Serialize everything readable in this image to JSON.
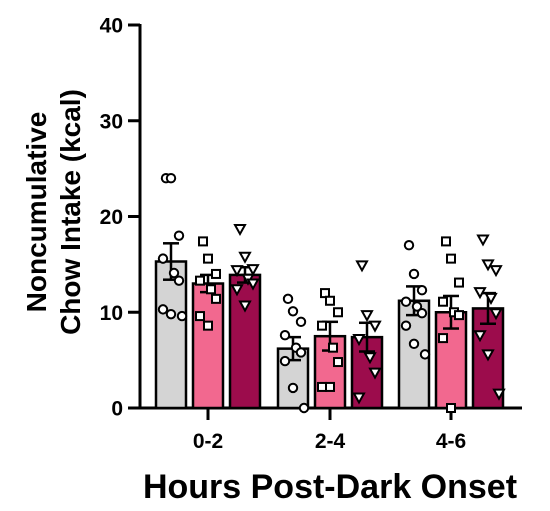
{
  "chart_data": {
    "type": "bar",
    "xlabel": "Hours Post-Dark Onset",
    "ylabel_lines": [
      "Noncumulative",
      "Chow Intake (kcal)"
    ],
    "ylim": [
      0,
      40
    ],
    "yticks": [
      "0",
      "10",
      "20",
      "30",
      "40"
    ],
    "grid": false,
    "legend": "none",
    "categories": [
      "0-2",
      "2-4",
      "4-6"
    ],
    "series": [
      {
        "color": "#d4d4d4",
        "marker": "circle",
        "values": [
          15.3,
          6.2,
          11.2
        ],
        "errors": [
          1.9,
          1.2,
          1.5
        ],
        "points": [
          [
            24.0,
            24.0,
            18.0,
            15.6,
            14.1,
            13.3,
            10.3,
            9.8,
            9.6
          ],
          [
            11.4,
            10.1,
            9.0,
            7.6,
            6.3,
            5.8,
            4.9,
            2.1,
            0.0
          ],
          [
            17.0,
            14.0,
            12.3,
            11.1,
            10.6,
            9.9,
            8.6,
            6.7,
            5.6
          ]
        ]
      },
      {
        "color": "#f2688f",
        "marker": "square",
        "values": [
          13.0,
          7.5,
          10.0
        ],
        "errors": [
          0.9,
          1.5,
          1.7
        ],
        "points": [
          [
            17.4,
            15.6,
            14.0,
            13.3,
            12.4,
            11.4,
            9.6,
            8.6
          ],
          [
            12.0,
            11.2,
            10.0,
            8.6,
            6.3,
            4.8,
            2.2,
            2.2
          ],
          [
            17.4,
            15.6,
            13.1,
            11.1,
            10.0,
            9.7,
            7.3,
            0.0
          ]
        ]
      },
      {
        "color": "#9c0c4c",
        "marker": "triangle",
        "values": [
          13.9,
          7.4,
          10.4
        ],
        "errors": [
          0.8,
          1.5,
          1.6
        ],
        "points": [
          [
            18.7,
            15.8,
            14.5,
            14.4,
            13.5,
            13.0,
            12.4,
            10.7
          ],
          [
            14.9,
            9.7,
            8.6,
            7.2,
            5.3,
            3.7,
            1.1
          ],
          [
            17.6,
            15.0,
            14.4,
            12.1,
            11.5,
            9.9,
            7.6,
            5.6,
            1.5
          ]
        ]
      }
    ]
  }
}
